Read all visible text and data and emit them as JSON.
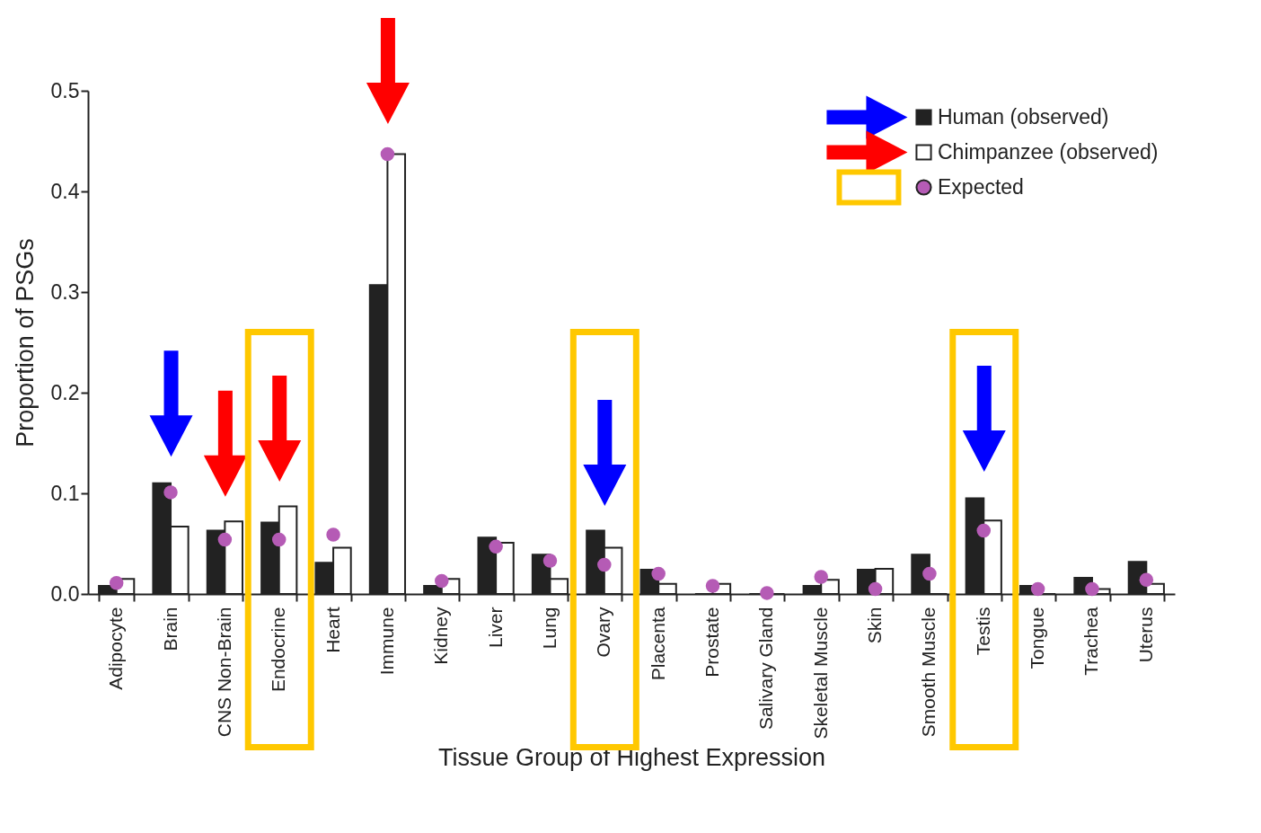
{
  "chart_data": {
    "type": "bar",
    "xlabel": "Tissue Group of Highest Expression",
    "ylabel": "Proportion of PSGs",
    "categories": [
      "Adipocyte",
      "Brain",
      "CNS Non-Brain",
      "Endocrine",
      "Heart",
      "Immune",
      "Kidney",
      "Liver",
      "Lung",
      "Ovary",
      "Placenta",
      "Prostate",
      "Salivary Gland",
      "Skeletal Muscle",
      "Skin",
      "Smooth Muscle",
      "Testis",
      "Tongue",
      "Trachea",
      "Uterus"
    ],
    "series": [
      {
        "name": "Human (observed)",
        "color": "#222222",
        "values": [
          0.008,
          0.11,
          0.063,
          0.071,
          0.031,
          0.307,
          0.008,
          0.056,
          0.039,
          0.063,
          0.024,
          0,
          0,
          0.008,
          0.024,
          0.039,
          0.095,
          0.008,
          0.016,
          0.032
        ]
      },
      {
        "name": "Chimpanzee (observed)",
        "color": "#ffffff",
        "values": [
          0.015,
          0.067,
          0.072,
          0.087,
          0.046,
          0.437,
          0.015,
          0.051,
          0.015,
          0.046,
          0.01,
          0.01,
          0,
          0.014,
          0.025,
          0,
          0.073,
          0,
          0.005,
          0.01
        ]
      },
      {
        "name": "Expected",
        "type": "scatter",
        "color": "#b55bb5",
        "values": [
          0.011,
          0.101,
          0.054,
          0.054,
          0.059,
          0.437,
          0.013,
          0.047,
          0.033,
          0.029,
          0.02,
          0.008,
          0.001,
          0.017,
          0.005,
          0.02,
          0.063,
          0.005,
          0.005,
          0.014
        ]
      }
    ],
    "ylim": [
      0,
      0.5
    ],
    "yticks": [
      {
        "value": 0,
        "label": "0.0"
      },
      {
        "value": 0.1,
        "label": "0.1"
      },
      {
        "value": 0.2,
        "label": "0.2"
      },
      {
        "value": 0.3,
        "label": "0.3"
      },
      {
        "value": 0.4,
        "label": "0.4"
      },
      {
        "value": 0.5,
        "label": "0.5"
      }
    ],
    "grid": false,
    "legend": "top right",
    "marker": "circle"
  }
}
